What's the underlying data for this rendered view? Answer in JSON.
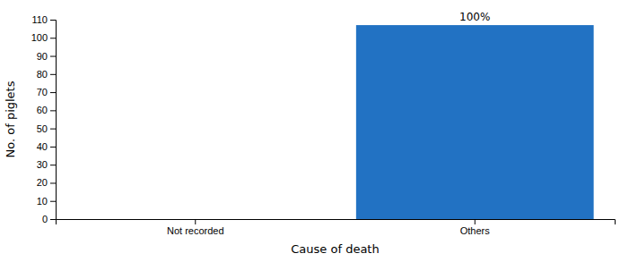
{
  "chart_data": {
    "type": "bar",
    "categories": [
      "Not recorded",
      "Others"
    ],
    "values": [
      0,
      107
    ],
    "color": "#2272C3",
    "xlabel": "Cause of death",
    "ylabel": "No. of piglets",
    "ylim": [
      0,
      110
    ],
    "yticks": [
      0,
      10,
      20,
      30,
      40,
      50,
      60,
      70,
      80,
      90,
      100,
      110
    ],
    "annotations": [
      {
        "text": "100%",
        "x": "Others",
        "y": 107
      }
    ],
    "grid": false
  }
}
